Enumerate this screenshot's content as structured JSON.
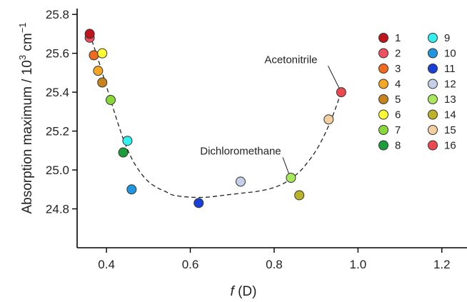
{
  "chart_data": {
    "type": "scatter",
    "xlabel_italic": "f",
    "xlabel_rest": " (D)",
    "ylabel_main": "Absorption maximum / 10",
    "ylabel_exp": "3",
    "ylabel_unit": " cm",
    "ylabel_unit_exp": "−1",
    "xlim": [
      0.33,
      1.26
    ],
    "ylim": [
      24.6,
      25.83
    ],
    "xticks": [
      0.4,
      0.6,
      0.8,
      1.0,
      1.2
    ],
    "xtick_labels": [
      "0.4",
      "0.6",
      "0.8",
      "1.0",
      "1.2"
    ],
    "yticks": [
      24.8,
      25.0,
      25.2,
      25.4,
      25.6,
      25.8
    ],
    "ytick_labels": [
      "24.8",
      "25.0",
      "25.2",
      "25.4",
      "25.6",
      "25.8"
    ],
    "series": [
      {
        "label": "1",
        "color": "#c0141c",
        "x": 0.36,
        "y": 25.7
      },
      {
        "label": "2",
        "color": "#f05060",
        "x": 0.36,
        "y": 25.68
      },
      {
        "label": "3",
        "color": "#f26a1b",
        "x": 0.37,
        "y": 25.59
      },
      {
        "label": "4",
        "color": "#f5a623",
        "x": 0.38,
        "y": 25.51
      },
      {
        "label": "5",
        "color": "#c8841c",
        "x": 0.39,
        "y": 25.45
      },
      {
        "label": "6",
        "color": "#ffff33",
        "x": 0.39,
        "y": 25.6
      },
      {
        "label": "7",
        "color": "#88d83c",
        "x": 0.41,
        "y": 25.36
      },
      {
        "label": "8",
        "color": "#1a9e3a",
        "x": 0.44,
        "y": 25.09
      },
      {
        "label": "9",
        "color": "#33f0f0",
        "x": 0.45,
        "y": 25.15
      },
      {
        "label": "10",
        "color": "#2196e0",
        "x": 0.46,
        "y": 24.9
      },
      {
        "label": "11",
        "color": "#1a3fd6",
        "x": 0.62,
        "y": 24.83
      },
      {
        "label": "12",
        "color": "#c6cfe8",
        "x": 0.72,
        "y": 24.94
      },
      {
        "label": "13",
        "color": "#a8e85a",
        "x": 0.84,
        "y": 24.96
      },
      {
        "label": "14",
        "color": "#bcb22a",
        "x": 0.86,
        "y": 24.87
      },
      {
        "label": "15",
        "color": "#f2cfa0",
        "x": 0.93,
        "y": 25.26
      },
      {
        "label": "16",
        "color": "#ec4850",
        "x": 0.96,
        "y": 25.4
      }
    ],
    "fit_curve": {
      "style": "dashed",
      "x": [
        0.36,
        0.38,
        0.4,
        0.42,
        0.44,
        0.46,
        0.48,
        0.5,
        0.52,
        0.54,
        0.56,
        0.6,
        0.64,
        0.68,
        0.72,
        0.76,
        0.8,
        0.83,
        0.86,
        0.88,
        0.9,
        0.92,
        0.94,
        0.96
      ],
      "y": [
        25.7,
        25.57,
        25.43,
        25.29,
        25.16,
        25.06,
        24.99,
        24.94,
        24.91,
        24.89,
        24.87,
        24.86,
        24.86,
        24.87,
        24.88,
        24.89,
        24.91,
        24.94,
        24.99,
        25.04,
        25.1,
        25.18,
        25.28,
        25.4
      ]
    },
    "annotations": [
      {
        "text": "Acetonitrile",
        "x": 0.96,
        "y": 25.4,
        "text_x": 0.84,
        "text_y": 25.55
      },
      {
        "text": "Dichloromethane",
        "x": 0.84,
        "y": 24.96,
        "text_x": 0.72,
        "text_y": 25.08
      }
    ],
    "legend_position": "right",
    "grid": false
  }
}
